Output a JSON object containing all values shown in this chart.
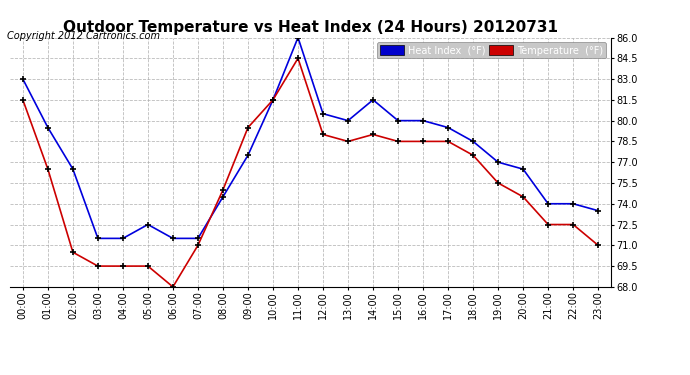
{
  "title": "Outdoor Temperature vs Heat Index (24 Hours) 20120731",
  "copyright": "Copyright 2012 Cartronics.com",
  "hours": [
    "00:00",
    "01:00",
    "02:00",
    "03:00",
    "04:00",
    "05:00",
    "06:00",
    "07:00",
    "08:00",
    "09:00",
    "10:00",
    "11:00",
    "12:00",
    "13:00",
    "14:00",
    "15:00",
    "16:00",
    "17:00",
    "18:00",
    "19:00",
    "20:00",
    "21:00",
    "22:00",
    "23:00"
  ],
  "heat_index": [
    83.0,
    79.5,
    76.5,
    71.5,
    71.5,
    72.5,
    71.5,
    71.5,
    74.5,
    77.5,
    81.5,
    86.0,
    80.5,
    80.0,
    81.5,
    80.0,
    80.0,
    79.5,
    78.5,
    77.0,
    76.5,
    74.0,
    74.0,
    73.5
  ],
  "temperature": [
    81.5,
    76.5,
    70.5,
    69.5,
    69.5,
    69.5,
    68.0,
    71.0,
    75.0,
    79.5,
    81.5,
    84.5,
    79.0,
    78.5,
    79.0,
    78.5,
    78.5,
    78.5,
    77.5,
    75.5,
    74.5,
    72.5,
    72.5,
    71.0
  ],
  "heat_index_color": "#0000dd",
  "temperature_color": "#cc0000",
  "background_color": "#ffffff",
  "plot_background": "#ffffff",
  "grid_color": "#aaaaaa",
  "ylim_min": 68.0,
  "ylim_max": 86.0,
  "ytick_step": 1.5,
  "legend_hi_bg": "#0000cc",
  "legend_temp_bg": "#cc0000",
  "legend_text_color": "#ffffff",
  "title_fontsize": 11,
  "copyright_fontsize": 7,
  "tick_fontsize": 7,
  "marker": "+",
  "marker_color": "#000000",
  "marker_size": 5,
  "linewidth": 1.2,
  "legend_label_hi": "Heat Index  (°F)",
  "legend_label_temp": "Temperature  (°F)"
}
